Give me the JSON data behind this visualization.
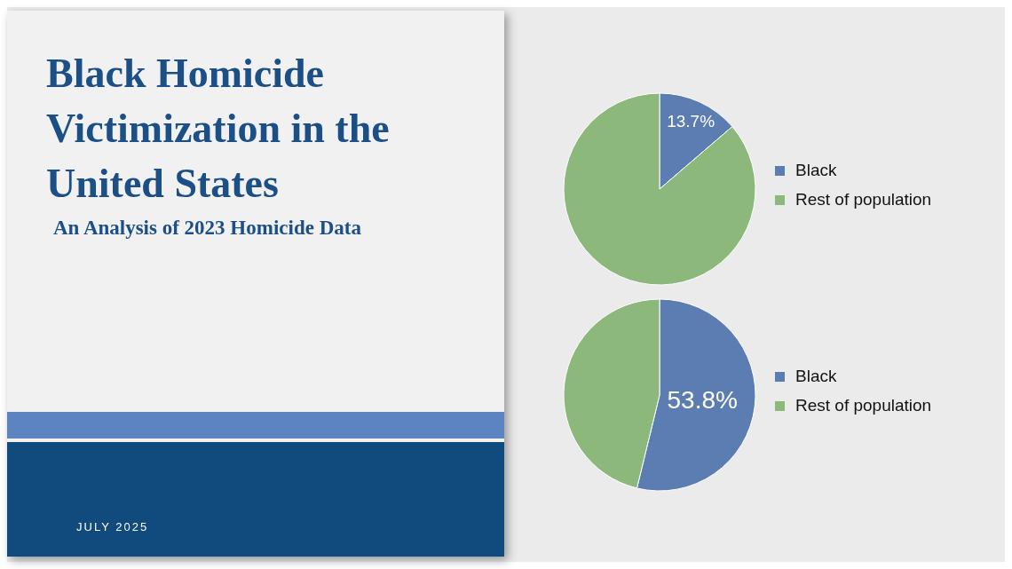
{
  "chart_data": [
    {
      "type": "other",
      "title": "Black Homicide Victimization in the United States",
      "subtitle": "An Analysis of 2023 Homicide Data",
      "annotations": [
        "JULY 2025"
      ]
    },
    {
      "type": "pie",
      "categories": [
        "Black",
        "Rest of population"
      ],
      "values": [
        13.7,
        86.3
      ],
      "colors": [
        "#5b7db1",
        "#8cb87c"
      ],
      "value_labels": [
        "13.7%",
        null
      ],
      "legend": "right"
    },
    {
      "type": "pie",
      "categories": [
        "Black",
        "Rest of population"
      ],
      "values": [
        53.8,
        46.2
      ],
      "colors": [
        "#5b7db1",
        "#8cb87c"
      ],
      "value_labels": [
        "53.8%",
        null
      ],
      "legend": "right"
    }
  ]
}
